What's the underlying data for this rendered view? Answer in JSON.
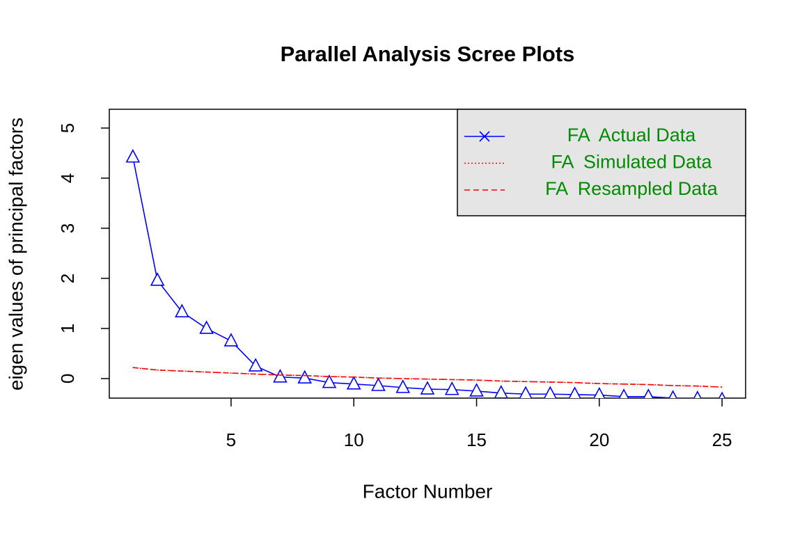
{
  "chart_data": {
    "type": "line",
    "title": "Parallel Analysis Scree Plots",
    "x_label": "Factor Number",
    "y_label": "eigen values of principal factors",
    "x": [
      1,
      2,
      3,
      4,
      5,
      6,
      7,
      8,
      9,
      10,
      11,
      12,
      13,
      14,
      15,
      16,
      17,
      18,
      19,
      20,
      21,
      22,
      23,
      24,
      25
    ],
    "series": [
      {
        "name": "FA  Actual Data",
        "color": "#0000ff",
        "marker": "triangle",
        "values": [
          4.42,
          1.96,
          1.33,
          1.0,
          0.75,
          0.25,
          0.03,
          0.01,
          -0.08,
          -0.11,
          -0.14,
          -0.18,
          -0.21,
          -0.22,
          -0.25,
          -0.29,
          -0.31,
          -0.31,
          -0.32,
          -0.33,
          -0.36,
          -0.36,
          -0.39,
          -0.4,
          -0.42
        ]
      },
      {
        "name": "FA  Simulated Data",
        "color": "#ff0000",
        "dash": "2,3",
        "values": [
          0.22,
          0.17,
          0.15,
          0.13,
          0.11,
          0.09,
          0.07,
          0.06,
          0.04,
          0.03,
          0.01,
          0.0,
          -0.01,
          -0.02,
          -0.03,
          -0.05,
          -0.06,
          -0.07,
          -0.08,
          -0.1,
          -0.11,
          -0.12,
          -0.14,
          -0.15,
          -0.17
        ]
      },
      {
        "name": "FA  Resampled Data",
        "color": "#ff0000",
        "dash": "8,5",
        "values": [
          0.22,
          0.17,
          0.15,
          0.13,
          0.11,
          0.09,
          0.07,
          0.06,
          0.04,
          0.03,
          0.01,
          0.0,
          -0.01,
          -0.02,
          -0.03,
          -0.05,
          -0.06,
          -0.07,
          -0.08,
          -0.1,
          -0.11,
          -0.12,
          -0.14,
          -0.15,
          -0.17
        ]
      }
    ],
    "xlim": [
      0.04,
      25.96
    ],
    "xticks": [
      5,
      10,
      15,
      20,
      25
    ],
    "ylim": [
      -0.39,
      5.375
    ],
    "yticks": [
      0,
      1,
      2,
      3,
      4,
      5
    ],
    "legend": "top-right",
    "legend_text_color": "#008b00",
    "legend_fill": "#e5e5e5"
  }
}
